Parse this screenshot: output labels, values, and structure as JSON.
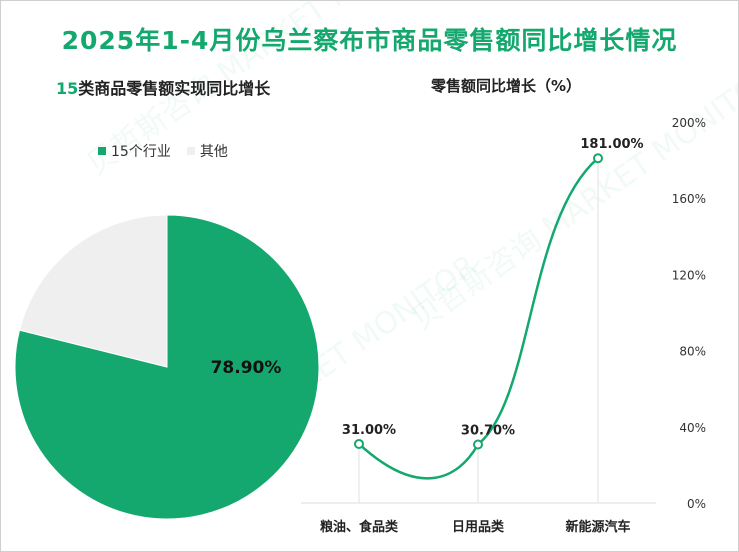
{
  "title": "2025年1-4月份乌兰察布市商品零售额同比增长情况",
  "left_subtitle_num": "15",
  "left_subtitle_rest": "类商品零售额实现同比增长",
  "right_subtitle": "零售额同比增长（%）",
  "watermark": "贝哲斯咨询 MARKET MONITOR",
  "colors": {
    "green": "#14a86e",
    "gray": "#efefef",
    "title": "#14a86e"
  },
  "chart_data": [
    {
      "type": "pie",
      "title": "15类商品零售额实现同比增长",
      "legend": [
        "15个行业",
        "其他"
      ],
      "legend_position": "top-left",
      "slices": [
        {
          "name": "15个行业",
          "value": 78.9,
          "label": "78.90%"
        },
        {
          "name": "其他",
          "value": 21.1,
          "label": ""
        }
      ]
    },
    {
      "type": "line",
      "title": "零售额同比增长（%）",
      "categories": [
        "粮油、食品类",
        "日用品类",
        "新能源汽车"
      ],
      "series": [
        {
          "values": [
            31.0,
            30.7,
            181.0
          ],
          "labels": [
            "31.00%",
            "30.70%",
            "181.00%"
          ]
        }
      ],
      "ylim": [
        0,
        200
      ],
      "yticks": [
        "0%",
        "40%",
        "80%",
        "120%",
        "160%",
        "200%"
      ],
      "y_axis_side": "right",
      "smooth": true,
      "grid": "vertical"
    }
  ]
}
